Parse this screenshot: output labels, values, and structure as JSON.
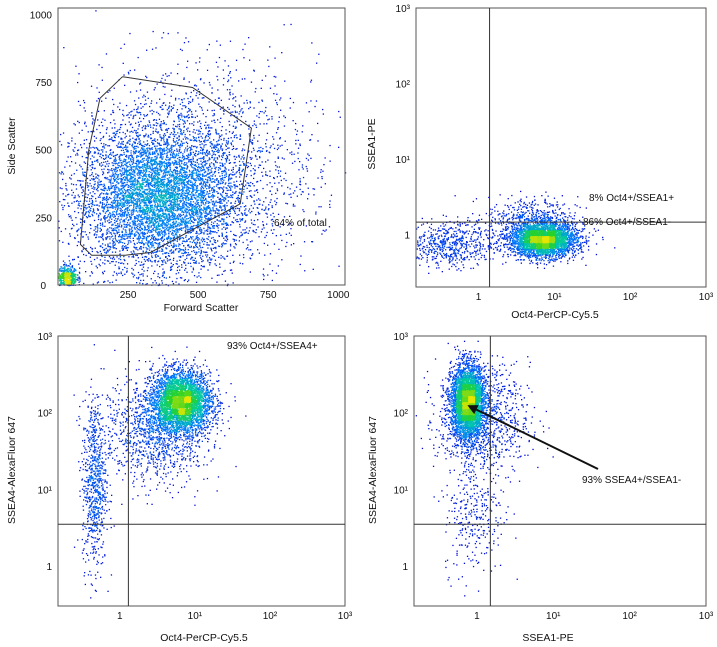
{
  "chart_data": [
    {
      "type": "scatter",
      "panel": "fsc-ssc",
      "xlabel": "Forward Scatter",
      "ylabel": "Side Scatter",
      "scale": "linear",
      "xlim": [
        0,
        1024
      ],
      "ylim": [
        0,
        1024
      ],
      "xticks": [
        "0",
        "250",
        "500",
        "750",
        "1000"
      ],
      "xtick_values": [
        0,
        250,
        500,
        750,
        1000
      ],
      "yticks": [
        "0",
        "250",
        "500",
        "750",
        "1000"
      ],
      "ytick_values": [
        0,
        250,
        500,
        750,
        1000
      ],
      "annotation": "64% of total",
      "gate_polygon": [
        [
          230,
          770
        ],
        [
          480,
          730
        ],
        [
          690,
          580
        ],
        [
          650,
          300
        ],
        [
          330,
          120
        ],
        [
          240,
          110
        ],
        [
          120,
          110
        ],
        [
          80,
          150
        ],
        [
          110,
          500
        ],
        [
          150,
          690
        ],
        [
          230,
          770
        ]
      ],
      "populations": [
        {
          "cx": 350,
          "cy": 320,
          "sx": 140,
          "sy": 130,
          "n": 5200
        },
        {
          "cx": 480,
          "cy": 420,
          "sx": 220,
          "sy": 200,
          "n": 2200
        },
        {
          "cx": 30,
          "cy": 30,
          "sx": 18,
          "sy": 22,
          "n": 500
        }
      ]
    },
    {
      "type": "scatter",
      "panel": "oct4-ssea1",
      "xlabel": "Oct4-PerCP-Cy5.5",
      "ylabel": "SSEA1-PE",
      "scale": "log",
      "xlim": [
        0.15,
        1000
      ],
      "ylim": [
        0.2,
        1000
      ],
      "xticks": [
        "1",
        "10¹",
        "10²",
        "10³"
      ],
      "xtick_values": [
        1,
        10,
        100,
        1000
      ],
      "yticks": [
        "1",
        "10¹",
        "10²",
        "10³"
      ],
      "ytick_values": [
        1,
        10,
        100,
        1000
      ],
      "quadrant": {
        "x": 1.4,
        "y": 1.45
      },
      "annotations": [
        "8% Oct4+/SSEA1+",
        "86% Oct4+/SSEA1-"
      ],
      "populations": [
        {
          "cx": 7.0,
          "cy": 0.85,
          "sx": 0.22,
          "sy": 0.11,
          "n": 3400
        },
        {
          "cx": 0.4,
          "cy": 0.75,
          "sx": 0.3,
          "sy": 0.15,
          "n": 600
        },
        {
          "cx": 5.0,
          "cy": 1.6,
          "sx": 0.3,
          "sy": 0.15,
          "n": 500
        }
      ]
    },
    {
      "type": "scatter",
      "panel": "oct4-ssea4",
      "xlabel": "Oct4-PerCP-Cy5.5",
      "ylabel": "SSEA4-AlexaFluor 647",
      "scale": "log",
      "xlim": [
        0.15,
        1000
      ],
      "ylim": [
        0.3,
        1000
      ],
      "xticks": [
        "1",
        "10¹",
        "10²",
        "10³"
      ],
      "xtick_values": [
        1,
        10,
        100,
        1000
      ],
      "yticks": [
        "1",
        "10¹",
        "10²",
        "10³"
      ],
      "ytick_values": [
        1,
        10,
        100,
        1000
      ],
      "quadrant": {
        "x": 1.3,
        "y": 3.5
      },
      "annotations": [
        "93% Oct4+/SSEA4+"
      ],
      "populations": [
        {
          "cx": 6.5,
          "cy": 140,
          "sx": 0.2,
          "sy": 0.2,
          "n": 3600
        },
        {
          "cx": 3.0,
          "cy": 60,
          "sx": 0.35,
          "sy": 0.35,
          "n": 1200
        },
        {
          "cx": 0.45,
          "cy": 12,
          "sx": 0.08,
          "sy": 0.55,
          "n": 700
        }
      ]
    },
    {
      "type": "scatter",
      "panel": "ssea1-ssea4",
      "xlabel": "SSEA1-PE",
      "ylabel": "SSEA4-AlexaFluor 647",
      "scale": "log",
      "xlim": [
        0.15,
        1000
      ],
      "ylim": [
        0.3,
        1000
      ],
      "xticks": [
        "1",
        "10¹",
        "10²",
        "10³"
      ],
      "xtick_values": [
        1,
        10,
        100,
        1000
      ],
      "yticks": [
        "1",
        "10¹",
        "10²",
        "10³"
      ],
      "ytick_values": [
        1,
        10,
        100,
        1000
      ],
      "quadrant": {
        "x": 1.5,
        "y": 3.5
      },
      "annotations": [
        "93% SSEA4+/SSEA1-"
      ],
      "arrow_to": {
        "x": 0.75,
        "y": 125
      },
      "populations": [
        {
          "cx": 0.75,
          "cy": 140,
          "sx": 0.11,
          "sy": 0.24,
          "n": 3800
        },
        {
          "cx": 1.2,
          "cy": 80,
          "sx": 0.3,
          "sy": 0.35,
          "n": 900
        },
        {
          "cx": 0.9,
          "cy": 5,
          "sx": 0.2,
          "sy": 0.4,
          "n": 300
        }
      ]
    }
  ]
}
